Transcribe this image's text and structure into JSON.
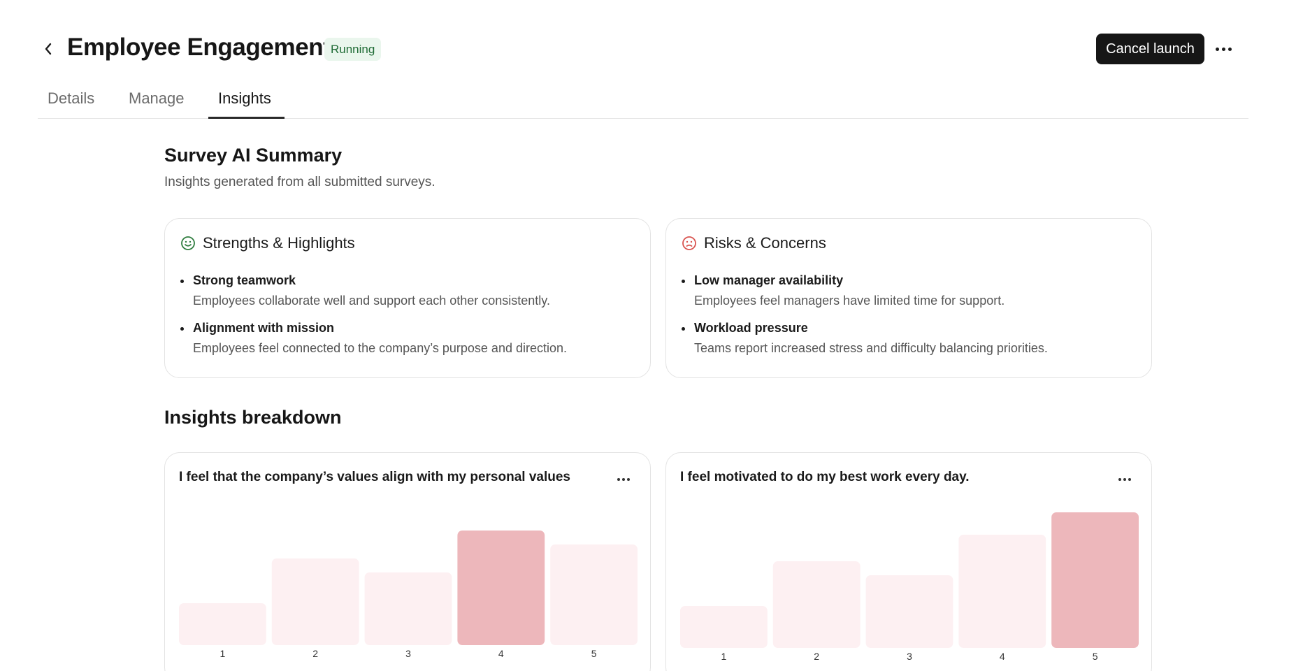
{
  "header": {
    "title": "Employee Engagement",
    "status": "Running",
    "cancel_label": "Cancel launch",
    "back_icon": "chevron-left-icon",
    "more_icon": "more-horizontal-icon"
  },
  "tabs": [
    {
      "label": "Details",
      "active": false
    },
    {
      "label": "Manage",
      "active": false
    },
    {
      "label": "Insights",
      "active": true
    }
  ],
  "summary": {
    "title": "Survey AI Summary",
    "subtitle": "Insights generated from all submitted surveys.",
    "strengths": {
      "title": "Strengths & Highlights",
      "icon": "smile-icon",
      "icon_color": "#2f7d3f",
      "items": [
        {
          "title": "Strong teamwork",
          "desc": "Employees collaborate well and support each other consistently."
        },
        {
          "title": "Alignment with mission",
          "desc": "Employees feel connected to the company’s purpose and direction."
        }
      ]
    },
    "risks": {
      "title": "Risks & Concerns",
      "icon": "frown-icon",
      "icon_color": "#d9534f",
      "items": [
        {
          "title": "Low manager availability",
          "desc": "Employees feel managers have limited time for support."
        },
        {
          "title": "Workload pressure",
          "desc": "Teams report increased stress and difficulty balancing priorities."
        }
      ]
    }
  },
  "breakdown": {
    "title": "Insights breakdown"
  },
  "colors": {
    "bar": "#fdf0f2",
    "bar_highlight": "#edb7bb",
    "accent_dark": "#161616",
    "status_bg": "#eaf6ed",
    "status_text": "#1f6b35"
  },
  "chart_data": [
    {
      "type": "bar",
      "title": "I feel that the company’s values align with my personal values",
      "categories": [
        "1",
        "2",
        "3",
        "4",
        "5"
      ],
      "values": [
        30,
        62,
        52,
        82,
        72
      ],
      "highlight_index": 3,
      "grid": false,
      "ylim": [
        0,
        100
      ]
    },
    {
      "type": "bar",
      "title": "I feel motivated to do my best work every day.",
      "categories": [
        "1",
        "2",
        "3",
        "4",
        "5"
      ],
      "values": [
        30,
        62,
        52,
        81,
        97
      ],
      "highlight_index": 4,
      "grid": false,
      "ylim": [
        0,
        100
      ]
    }
  ]
}
